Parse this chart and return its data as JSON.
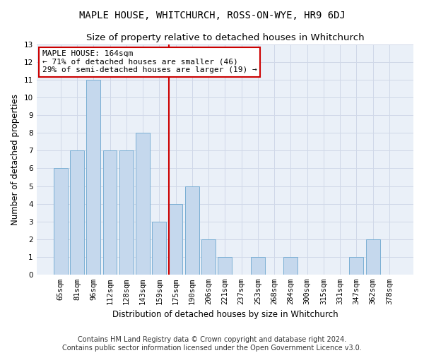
{
  "title": "MAPLE HOUSE, WHITCHURCH, ROSS-ON-WYE, HR9 6DJ",
  "subtitle": "Size of property relative to detached houses in Whitchurch",
  "xlabel": "Distribution of detached houses by size in Whitchurch",
  "ylabel": "Number of detached properties",
  "categories": [
    "65sqm",
    "81sqm",
    "96sqm",
    "112sqm",
    "128sqm",
    "143sqm",
    "159sqm",
    "175sqm",
    "190sqm",
    "206sqm",
    "221sqm",
    "237sqm",
    "253sqm",
    "268sqm",
    "284sqm",
    "300sqm",
    "315sqm",
    "331sqm",
    "347sqm",
    "362sqm",
    "378sqm"
  ],
  "values": [
    6,
    7,
    11,
    7,
    7,
    8,
    3,
    4,
    5,
    2,
    1,
    0,
    1,
    0,
    1,
    0,
    0,
    0,
    1,
    2,
    0
  ],
  "bar_color": "#c5d8ed",
  "bar_edge_color": "#7bafd4",
  "red_line_index": 6.57,
  "red_line_color": "#cc0000",
  "annotation_line1": "MAPLE HOUSE: 164sqm",
  "annotation_line2": "← 71% of detached houses are smaller (46)",
  "annotation_line3": "29% of semi-detached houses are larger (19) →",
  "ylim": [
    0,
    13
  ],
  "yticks": [
    0,
    1,
    2,
    3,
    4,
    5,
    6,
    7,
    8,
    9,
    10,
    11,
    12,
    13
  ],
  "grid_color": "#d0d8e8",
  "background_color": "#eaf0f8",
  "footer_line1": "Contains HM Land Registry data © Crown copyright and database right 2024.",
  "footer_line2": "Contains public sector information licensed under the Open Government Licence v3.0.",
  "title_fontsize": 10,
  "subtitle_fontsize": 9.5,
  "ylabel_fontsize": 8.5,
  "xlabel_fontsize": 8.5,
  "tick_fontsize": 7.5,
  "annotation_fontsize": 8,
  "footer_fontsize": 7
}
